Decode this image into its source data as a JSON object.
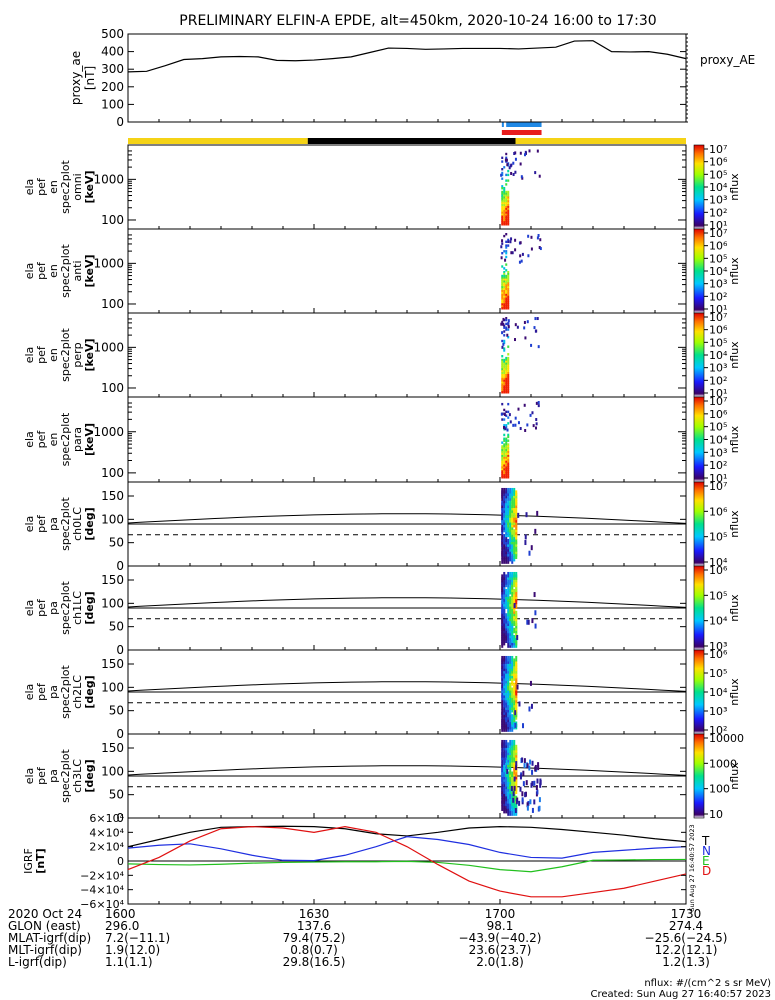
{
  "title": "PRELIMINARY ELFIN-A EPDE, alt=450km, 2020-10-24 16:00 to 17:30",
  "colors": {
    "sci_bar": "#f5d316",
    "night_bar": "#000000",
    "blue_bar": "#1e88e5",
    "red_bar": "#e81c1c",
    "T": "#000000",
    "N": "#1f2fe0",
    "E": "#22c01e",
    "D": "#e01010"
  },
  "chart_data": [
    {
      "type": "line",
      "panel": "proxy_ae",
      "ylabel_lines": [
        "proxy_ae",
        "[nT]"
      ],
      "series_label": "proxy_AE",
      "ylim": [
        0,
        500
      ],
      "yticks": [
        "0",
        "100",
        "200",
        "300",
        "400",
        "500"
      ],
      "x_minutes": [
        0,
        3,
        6,
        9,
        12,
        15,
        18,
        21,
        24,
        27,
        30,
        33,
        36,
        39,
        42,
        45,
        48,
        51,
        54,
        57,
        60,
        63,
        66,
        69,
        72,
        75,
        78,
        81,
        84,
        87,
        90
      ],
      "values": [
        285,
        288,
        320,
        355,
        360,
        370,
        372,
        370,
        350,
        348,
        352,
        360,
        370,
        395,
        420,
        418,
        413,
        415,
        418,
        418,
        418,
        415,
        420,
        425,
        460,
        462,
        400,
        398,
        400,
        385,
        360
      ]
    },
    {
      "type": "heatmap",
      "panel": "en_spec2plot_omni",
      "ylabel_lines": [
        "ela",
        "pef",
        "en",
        "spec2plot",
        "omni",
        "[keV]"
      ],
      "yscale": "log",
      "yticks": [
        "100",
        "1000"
      ],
      "colorbar": {
        "label": "nflux",
        "ticks": [
          "10¹",
          "10²",
          "10³",
          "10⁴",
          "10⁵",
          "10⁶",
          "10⁷"
        ]
      }
    },
    {
      "type": "heatmap",
      "panel": "en_spec2plot_anti",
      "ylabel_lines": [
        "ela",
        "pef",
        "en",
        "spec2plot",
        "anti",
        "[keV]"
      ],
      "yscale": "log",
      "yticks": [
        "100",
        "1000"
      ],
      "colorbar": {
        "label": "nflux",
        "ticks": [
          "10¹",
          "10²",
          "10³",
          "10⁴",
          "10⁵",
          "10⁶",
          "10⁷"
        ]
      }
    },
    {
      "type": "heatmap",
      "panel": "en_spec2plot_perp",
      "ylabel_lines": [
        "ela",
        "pef",
        "en",
        "spec2plot",
        "perp",
        "[keV]"
      ],
      "yscale": "log",
      "yticks": [
        "100",
        "1000"
      ],
      "colorbar": {
        "label": "nflux",
        "ticks": [
          "10¹",
          "10²",
          "10³",
          "10⁴",
          "10⁵",
          "10⁶",
          "10⁷"
        ]
      }
    },
    {
      "type": "heatmap",
      "panel": "en_spec2plot_para",
      "ylabel_lines": [
        "ela",
        "pef",
        "en",
        "spec2plot",
        "para",
        "[keV]"
      ],
      "yscale": "log",
      "yticks": [
        "100",
        "1000"
      ],
      "colorbar": {
        "label": "nflux",
        "ticks": [
          "10¹",
          "10²",
          "10³",
          "10⁴",
          "10⁵",
          "10⁶",
          "10⁷"
        ]
      }
    },
    {
      "type": "heatmap",
      "panel": "pa_spec2plot_ch0LC",
      "ylabel_lines": [
        "ela",
        "pef",
        "pa",
        "spec2plot",
        "ch0LC",
        "[deg]"
      ],
      "ylim": [
        0,
        180
      ],
      "yticks": [
        "0",
        "50",
        "100",
        "150"
      ],
      "colorbar": {
        "label": "nflux",
        "ticks": [
          "10⁴",
          "10⁵",
          "10⁶",
          "10⁷"
        ]
      }
    },
    {
      "type": "heatmap",
      "panel": "pa_spec2plot_ch1LC",
      "ylabel_lines": [
        "ela",
        "pef",
        "pa",
        "spec2plot",
        "ch1LC",
        "[deg]"
      ],
      "ylim": [
        0,
        180
      ],
      "yticks": [
        "0",
        "50",
        "100",
        "150"
      ],
      "colorbar": {
        "label": "nflux",
        "ticks": [
          "10³",
          "10⁴",
          "10⁵",
          "10⁶"
        ]
      }
    },
    {
      "type": "heatmap",
      "panel": "pa_spec2plot_ch2LC",
      "ylabel_lines": [
        "ela",
        "pef",
        "pa",
        "spec2plot",
        "ch2LC",
        "[deg]"
      ],
      "ylim": [
        0,
        180
      ],
      "yticks": [
        "0",
        "50",
        "100",
        "150"
      ],
      "colorbar": {
        "label": "nflux",
        "ticks": [
          "10²",
          "10³",
          "10⁴",
          "10⁵",
          "10⁶"
        ]
      }
    },
    {
      "type": "heatmap",
      "panel": "pa_spec2plot_ch3LC",
      "ylabel_lines": [
        "ela",
        "pef",
        "pa",
        "spec2plot",
        "ch3LC",
        "[deg]"
      ],
      "ylim": [
        0,
        180
      ],
      "yticks": [
        "0",
        "50",
        "100",
        "150"
      ],
      "colorbar": {
        "label": "nflux",
        "ticks": [
          "10",
          "100",
          "1000",
          "10000"
        ]
      }
    },
    {
      "type": "line",
      "panel": "igrf",
      "ylabel_lines": [
        "IGRF",
        "[nT]"
      ],
      "ylim": [
        -60000,
        60000
      ],
      "yticks": [
        "−6×10⁴",
        "−4×10⁴",
        "−2×10⁴",
        "0",
        "2×10⁴",
        "4×10⁴",
        "6×10⁴"
      ],
      "x_minutes": [
        0,
        5,
        10,
        15,
        20,
        25,
        30,
        35,
        40,
        45,
        50,
        55,
        60,
        65,
        70,
        75,
        80,
        85,
        90
      ],
      "series": [
        {
          "name": "T",
          "values": [
            20000,
            30000,
            40000,
            47000,
            48000,
            48500,
            48000,
            45000,
            38000,
            35000,
            40000,
            46000,
            48000,
            47000,
            44000,
            40000,
            36000,
            31000,
            27000
          ]
        },
        {
          "name": "N",
          "values": [
            18000,
            22000,
            24000,
            17000,
            8000,
            1000,
            500,
            8000,
            20000,
            34000,
            30000,
            23000,
            12000,
            5000,
            4000,
            12000,
            15000,
            18000,
            20000
          ]
        },
        {
          "name": "E",
          "values": [
            -4000,
            -5000,
            -5500,
            -4500,
            -3000,
            -2000,
            -1500,
            -1000,
            -1000,
            -500,
            -2000,
            -6000,
            -12000,
            -15000,
            -8000,
            1000,
            1500,
            2000,
            2200
          ]
        },
        {
          "name": "D",
          "values": [
            -12000,
            5000,
            28000,
            45000,
            48000,
            46000,
            40000,
            48000,
            40000,
            20000,
            -5000,
            -28000,
            -42000,
            -50000,
            -50000,
            -44000,
            -38000,
            -28000,
            -18000
          ]
        }
      ]
    }
  ],
  "stamp": "Sun Aug 27 16:40:57 2023",
  "footer": {
    "rows": [
      {
        "label": "2020 Oct 24",
        "vals": [
          "1600",
          "1630",
          "1700",
          "1730"
        ]
      },
      {
        "label": "GLON (east)",
        "vals": [
          "296.0",
          "137.6",
          "98.1",
          "274.4"
        ]
      },
      {
        "label": "MLAT-igrf(dip)",
        "vals": [
          "7.2(−11.1)",
          "79.4(75.2)",
          "−43.9(−40.2)",
          "−25.6(−24.5)"
        ]
      },
      {
        "label": "MLT-igrf(dip)",
        "vals": [
          "1.9(12.0)",
          "0.8(0.7)",
          "23.6(23.7)",
          "12.2(12.1)"
        ]
      },
      {
        "label": "L-igrf(dip)",
        "vals": [
          "1.1(1.1)",
          "29.8(16.5)",
          "2.0(1.8)",
          "1.2(1.3)"
        ]
      }
    ],
    "nflux_note": "nflux: #/(cm^2 s sr MeV)",
    "created": "Created: Sun Aug 27 16:40:57 2023"
  }
}
